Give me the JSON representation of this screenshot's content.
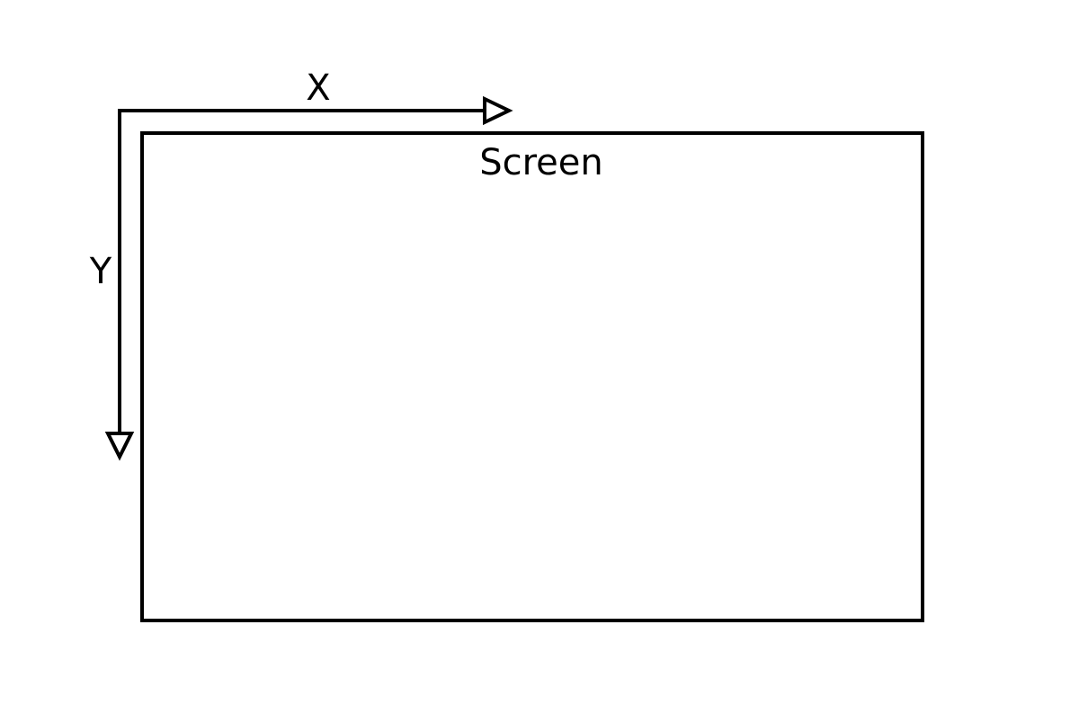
{
  "diagram": {
    "labels": {
      "x_axis": "X",
      "y_axis": "Y",
      "screen": "Screen"
    },
    "colors": {
      "stroke": "#000000",
      "background": "#ffffff",
      "text": "#000000"
    }
  }
}
